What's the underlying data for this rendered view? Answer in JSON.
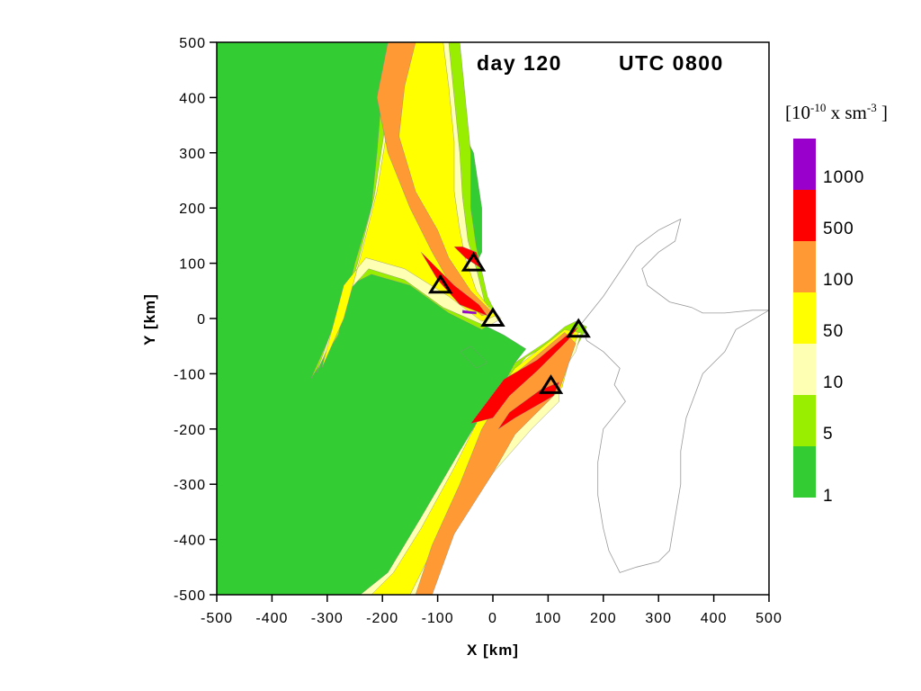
{
  "chart_data": {
    "type": "contour",
    "title": "day 120",
    "subtitle": "UTC 0800",
    "xlabel": "X [km]",
    "ylabel": "Y [km]",
    "xlim": [
      -500,
      500
    ],
    "ylim": [
      -500,
      500
    ],
    "xticks": [
      -500,
      -400,
      -300,
      -200,
      -100,
      0,
      100,
      200,
      300,
      400,
      500
    ],
    "yticks": [
      -500,
      -400,
      -300,
      -200,
      -100,
      0,
      100,
      200,
      300,
      400,
      500
    ],
    "xtick_labels": [
      "-500",
      "-400",
      "-300",
      "-200",
      "-100",
      "0",
      "100",
      "200",
      "300",
      "400",
      "500"
    ],
    "ytick_labels": [
      "-500",
      "-400",
      "-300",
      "-200",
      "-100",
      "0",
      "100",
      "200",
      "300",
      "400",
      "500"
    ],
    "colorbar": {
      "unit_parts": [
        "[10",
        "-10",
        " x sm",
        "-3",
        " ]"
      ],
      "levels": [
        "1",
        "5",
        "10",
        "50",
        "100",
        "500",
        "1000"
      ],
      "colors": [
        "#33cc33",
        "#99ee00",
        "#ffffb3",
        "#ffff00",
        "#ff9933",
        "#ff0000",
        "#9900cc"
      ]
    },
    "sources": [
      {
        "x": -35,
        "y": 100
      },
      {
        "x": -95,
        "y": 60
      },
      {
        "x": 0,
        "y": 0
      },
      {
        "x": 155,
        "y": -20
      },
      {
        "x": 105,
        "y": -122
      }
    ],
    "regions": [
      {
        "level": 0,
        "points": [
          [
            -500,
            500
          ],
          [
            -500,
            -500
          ],
          [
            -400,
            -500
          ],
          [
            -300,
            -500
          ],
          [
            -200,
            -500
          ],
          [
            -120,
            -380
          ],
          [
            -40,
            -230
          ],
          [
            40,
            -80
          ],
          [
            60,
            -55
          ],
          [
            20,
            -30
          ],
          [
            -20,
            -10
          ],
          [
            -40,
            20
          ],
          [
            -40,
            80
          ],
          [
            -20,
            120
          ],
          [
            -20,
            200
          ],
          [
            -35,
            300
          ],
          [
            -60,
            350
          ],
          [
            -80,
            500
          ]
        ]
      },
      {
        "level": 1,
        "points": [
          [
            -270,
            -500
          ],
          [
            -200,
            -500
          ],
          [
            -120,
            -380
          ],
          [
            -40,
            -230
          ],
          [
            40,
            -80
          ],
          [
            100,
            -40
          ],
          [
            130,
            -15
          ],
          [
            150,
            -5
          ],
          [
            170,
            -15
          ],
          [
            150,
            -55
          ],
          [
            115,
            -105
          ],
          [
            100,
            -150
          ],
          [
            60,
            -170
          ],
          [
            -20,
            -270
          ],
          [
            -100,
            -420
          ],
          [
            -160,
            -500
          ]
        ]
      },
      {
        "level": 2,
        "points": [
          [
            -240,
            -500
          ],
          [
            -130,
            -500
          ],
          [
            -80,
            -400
          ],
          [
            0,
            -280
          ],
          [
            70,
            -200
          ],
          [
            120,
            -150
          ],
          [
            120,
            -105
          ],
          [
            150,
            -60
          ],
          [
            160,
            -25
          ],
          [
            130,
            -30
          ],
          [
            60,
            -70
          ],
          [
            0,
            -140
          ],
          [
            -60,
            -240
          ],
          [
            -130,
            -360
          ],
          [
            -190,
            -460
          ]
        ]
      },
      {
        "level": 3,
        "points": [
          [
            -220,
            -500
          ],
          [
            -150,
            -500
          ],
          [
            -100,
            -400
          ],
          [
            -40,
            -300
          ],
          [
            30,
            -210
          ],
          [
            80,
            -170
          ],
          [
            125,
            -125
          ],
          [
            140,
            -70
          ],
          [
            155,
            -25
          ],
          [
            130,
            -20
          ],
          [
            40,
            -90
          ],
          [
            -20,
            -170
          ],
          [
            -70,
            -270
          ],
          [
            -130,
            -380
          ],
          [
            -180,
            -460
          ]
        ]
      },
      {
        "level": 4,
        "points": [
          [
            -140,
            -500
          ],
          [
            -110,
            -500
          ],
          [
            -70,
            -390
          ],
          [
            0,
            -280
          ],
          [
            40,
            -210
          ],
          [
            80,
            -170
          ],
          [
            120,
            -130
          ],
          [
            150,
            -45
          ],
          [
            130,
            -25
          ],
          [
            40,
            -100
          ],
          [
            -20,
            -200
          ],
          [
            -60,
            -300
          ],
          [
            -110,
            -410
          ]
        ]
      },
      {
        "level": 5,
        "points": [
          [
            -40,
            -190
          ],
          [
            20,
            -110
          ],
          [
            80,
            -75
          ],
          [
            140,
            -25
          ],
          [
            155,
            -15
          ],
          [
            135,
            -40
          ],
          [
            80,
            -95
          ],
          [
            30,
            -140
          ],
          [
            0,
            -180
          ]
        ]
      },
      {
        "level": 5,
        "points": [
          [
            10,
            -200
          ],
          [
            40,
            -180
          ],
          [
            110,
            -140
          ],
          [
            120,
            -115
          ],
          [
            85,
            -130
          ],
          [
            30,
            -170
          ]
        ]
      },
      {
        "level": 0,
        "points": [
          [
            -60,
            -60
          ],
          [
            -30,
            -90
          ],
          [
            -10,
            -80
          ],
          [
            -40,
            -50
          ]
        ]
      },
      {
        "level": 1,
        "points": [
          [
            -330,
            -110
          ],
          [
            -280,
            -30
          ],
          [
            -250,
            100
          ],
          [
            -220,
            200
          ],
          [
            -210,
            300
          ],
          [
            -200,
            420
          ],
          [
            -160,
            500
          ],
          [
            -60,
            500
          ],
          [
            -50,
            400
          ],
          [
            -40,
            300
          ],
          [
            -40,
            200
          ],
          [
            -30,
            130
          ],
          [
            -10,
            40
          ],
          [
            10,
            0
          ],
          [
            -20,
            -20
          ],
          [
            -80,
            10
          ],
          [
            -150,
            60
          ],
          [
            -220,
            80
          ],
          [
            -260,
            60
          ],
          [
            -290,
            -20
          ]
        ]
      },
      {
        "level": 2,
        "points": [
          [
            -320,
            -100
          ],
          [
            -280,
            -10
          ],
          [
            -245,
            100
          ],
          [
            -215,
            220
          ],
          [
            -190,
            380
          ],
          [
            -150,
            500
          ],
          [
            -80,
            500
          ],
          [
            -70,
            400
          ],
          [
            -60,
            300
          ],
          [
            -55,
            220
          ],
          [
            -45,
            140
          ],
          [
            -30,
            90
          ],
          [
            -15,
            30
          ],
          [
            15,
            0
          ],
          [
            -10,
            -15
          ],
          [
            -90,
            20
          ],
          [
            -160,
            70
          ],
          [
            -225,
            90
          ],
          [
            -270,
            40
          ]
        ]
      },
      {
        "level": 3,
        "points": [
          [
            -310,
            -90
          ],
          [
            -270,
            0
          ],
          [
            -240,
            110
          ],
          [
            -210,
            230
          ],
          [
            -185,
            380
          ],
          [
            -150,
            500
          ],
          [
            -90,
            500
          ],
          [
            -80,
            420
          ],
          [
            -70,
            320
          ],
          [
            -70,
            230
          ],
          [
            -60,
            160
          ],
          [
            -50,
            110
          ],
          [
            -30,
            50
          ],
          [
            5,
            5
          ],
          [
            -20,
            -5
          ],
          [
            -80,
            40
          ],
          [
            -160,
            90
          ],
          [
            -230,
            110
          ],
          [
            -270,
            60
          ]
        ]
      },
      {
        "level": 4,
        "points": [
          [
            -210,
            400
          ],
          [
            -190,
            500
          ],
          [
            -140,
            500
          ],
          [
            -160,
            420
          ],
          [
            -170,
            330
          ],
          [
            -140,
            230
          ],
          [
            -100,
            160
          ],
          [
            -80,
            110
          ],
          [
            -40,
            50
          ],
          [
            0,
            10
          ],
          [
            -20,
            5
          ],
          [
            -70,
            50
          ],
          [
            -110,
            120
          ],
          [
            -150,
            200
          ],
          [
            -190,
            300
          ]
        ]
      },
      {
        "level": 5,
        "points": [
          [
            -130,
            120
          ],
          [
            -100,
            70
          ],
          [
            -60,
            25
          ],
          [
            -10,
            5
          ],
          [
            -25,
            25
          ],
          [
            -70,
            60
          ],
          [
            -110,
            100
          ]
        ]
      },
      {
        "level": 5,
        "points": [
          [
            -70,
            130
          ],
          [
            -50,
            110
          ],
          [
            -20,
            90
          ],
          [
            -30,
            120
          ],
          [
            -55,
            130
          ]
        ]
      },
      {
        "level": 6,
        "points": [
          [
            -55,
            15
          ],
          [
            -30,
            12
          ],
          [
            -30,
            8
          ],
          [
            -55,
            10
          ]
        ]
      }
    ],
    "land_boundary": [
      [
        160,
        -10
      ],
      [
        200,
        40
      ],
      [
        240,
        100
      ],
      [
        260,
        130
      ],
      [
        300,
        160
      ],
      [
        340,
        180
      ],
      [
        330,
        140
      ],
      [
        300,
        120
      ],
      [
        270,
        90
      ],
      [
        280,
        60
      ],
      [
        320,
        30
      ],
      [
        360,
        20
      ],
      [
        380,
        10
      ],
      [
        420,
        10
      ],
      [
        470,
        15
      ],
      [
        500,
        15
      ],
      [
        440,
        -20
      ],
      [
        420,
        -60
      ],
      [
        380,
        -100
      ],
      [
        350,
        -180
      ],
      [
        340,
        -240
      ],
      [
        340,
        -300
      ],
      [
        330,
        -360
      ],
      [
        320,
        -420
      ],
      [
        300,
        -440
      ],
      [
        260,
        -450
      ],
      [
        230,
        -460
      ],
      [
        210,
        -420
      ],
      [
        200,
        -380
      ],
      [
        190,
        -320
      ],
      [
        190,
        -260
      ],
      [
        200,
        -200
      ],
      [
        240,
        -150
      ],
      [
        220,
        -120
      ],
      [
        230,
        -90
      ],
      [
        200,
        -60
      ],
      [
        170,
        -40
      ]
    ]
  }
}
